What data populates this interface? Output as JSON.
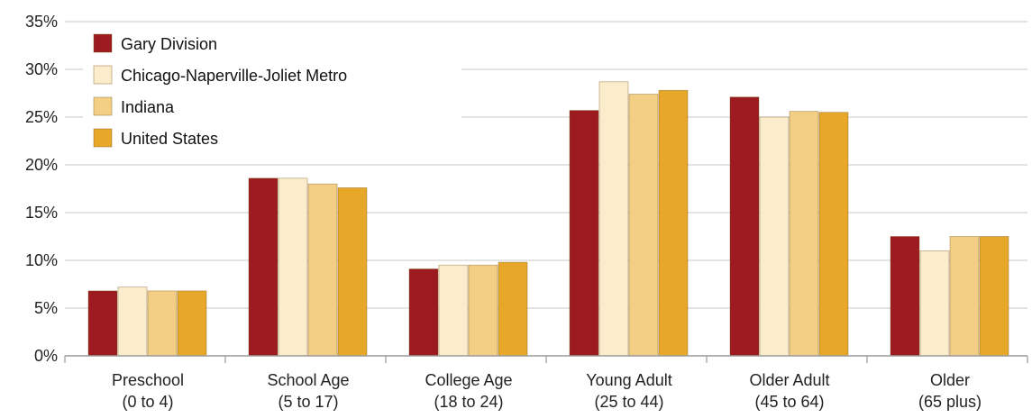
{
  "chart_data": {
    "type": "bar",
    "categories": [
      [
        "Preschool",
        "(0 to 4)"
      ],
      [
        "School Age",
        "(5 to 17)"
      ],
      [
        "College Age",
        "(18 to 24)"
      ],
      [
        "Young Adult",
        "(25 to 44)"
      ],
      [
        "Older Adult",
        "(45 to 64)"
      ],
      [
        "Older",
        "(65 plus)"
      ]
    ],
    "series": [
      {
        "name": "Gary Division",
        "color": "#9b1b20",
        "values": [
          6.8,
          18.6,
          9.1,
          25.7,
          27.1,
          12.5
        ]
      },
      {
        "name": "Chicago-Naperville-Joliet Metro",
        "color": "#fbeccb",
        "values": [
          7.2,
          18.6,
          9.5,
          28.7,
          25.0,
          11.0
        ]
      },
      {
        "name": "Indiana",
        "color": "#f3cf86",
        "values": [
          6.8,
          18.0,
          9.5,
          27.4,
          25.6,
          12.5
        ]
      },
      {
        "name": "United States",
        "color": "#e7a82a",
        "values": [
          6.8,
          17.6,
          9.8,
          27.8,
          25.5,
          12.5
        ]
      }
    ],
    "ylim": [
      0,
      35
    ],
    "yticks": [
      0,
      5,
      10,
      15,
      20,
      25,
      30,
      35
    ],
    "ytick_labels": [
      "0%",
      "5%",
      "10%",
      "15%",
      "20%",
      "25%",
      "30%",
      "35%"
    ],
    "grid": true,
    "legend_position": "top-left"
  }
}
